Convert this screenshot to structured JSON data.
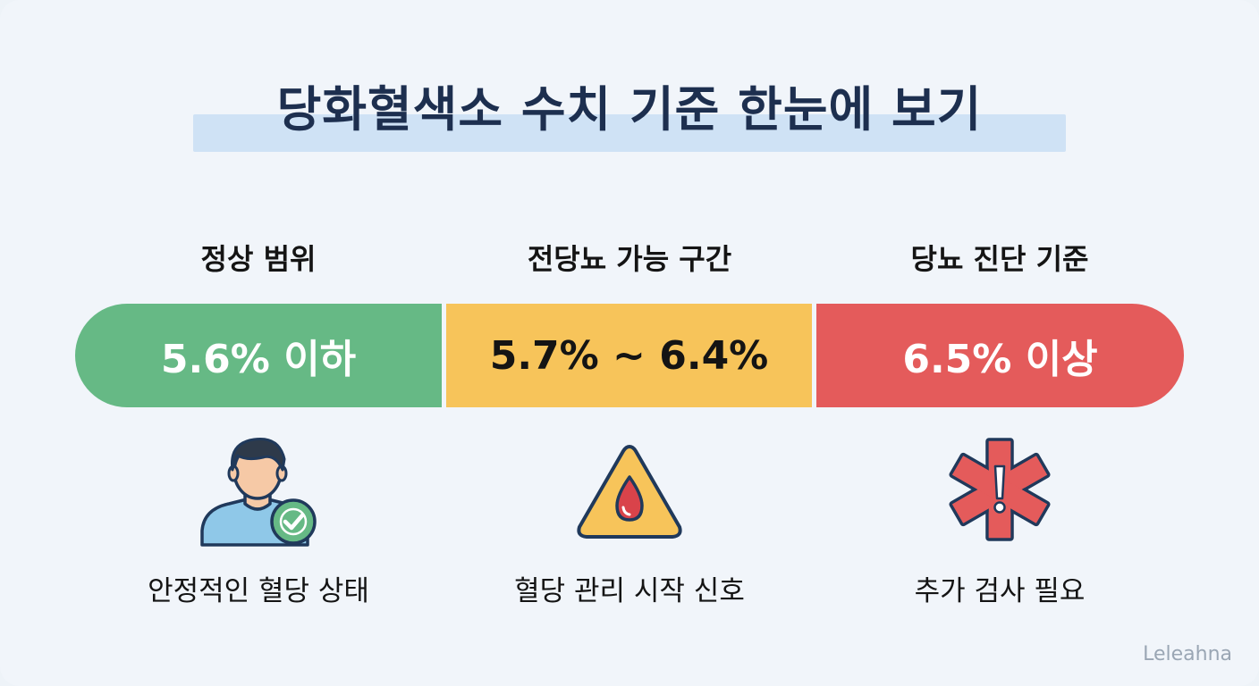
{
  "title": "당화혈색소 수치 기준 한눈에 보기",
  "columns": [
    {
      "heading": "정상 범위",
      "range": "5.6% 이하",
      "caption": "안정적인 혈당 상태",
      "color": "#66b985",
      "icon": "person-check-icon"
    },
    {
      "heading": "전당뇨 가능 구간",
      "range": "5.7% ~ 6.4%",
      "caption": "혈당 관리 시작 신호",
      "color": "#f7c45a",
      "icon": "warning-blood-drop-icon"
    },
    {
      "heading": "당뇨 진단 기준",
      "range": "6.5% 이상",
      "caption": "추가 검사 필요",
      "color": "#e45b5b",
      "icon": "medical-alert-star-icon"
    }
  ],
  "watermark": "Leleahna"
}
